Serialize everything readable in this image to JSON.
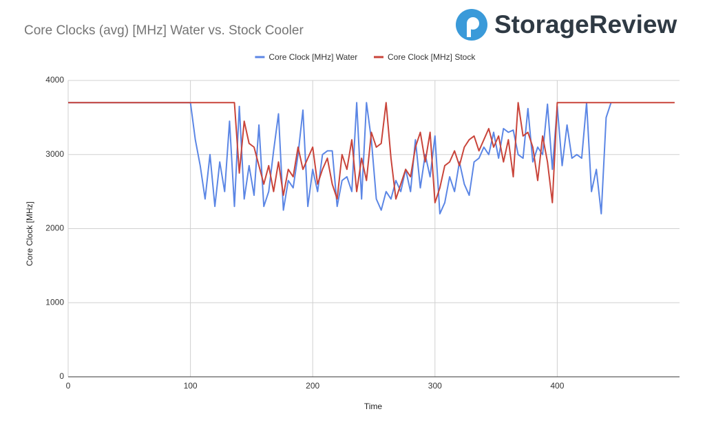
{
  "brand": "StorageReview",
  "chart_data": {
    "type": "line",
    "title": "Core Clocks (avg) [MHz] Water vs. Stock Cooler",
    "x_label": "Time",
    "y_label": "Core Clock [MHz]",
    "xlim": [
      0,
      500
    ],
    "ylim": [
      0,
      4000
    ],
    "xticks": [
      0,
      100,
      200,
      300,
      400
    ],
    "yticks": [
      0,
      1000,
      2000,
      3000,
      4000
    ],
    "grid": true,
    "legend": "top",
    "x": [
      0,
      4,
      8,
      12,
      16,
      20,
      24,
      28,
      32,
      36,
      40,
      44,
      48,
      52,
      56,
      60,
      64,
      68,
      72,
      76,
      80,
      84,
      88,
      92,
      96,
      100,
      104,
      108,
      112,
      116,
      120,
      124,
      128,
      132,
      136,
      140,
      144,
      148,
      152,
      156,
      160,
      164,
      168,
      172,
      176,
      180,
      184,
      188,
      192,
      196,
      200,
      204,
      208,
      212,
      216,
      220,
      224,
      228,
      232,
      236,
      240,
      244,
      248,
      252,
      256,
      260,
      264,
      268,
      272,
      276,
      280,
      284,
      288,
      292,
      296,
      300,
      304,
      308,
      312,
      316,
      320,
      324,
      328,
      332,
      336,
      340,
      344,
      348,
      352,
      356,
      360,
      364,
      368,
      372,
      376,
      380,
      384,
      388,
      392,
      396,
      400,
      404,
      408,
      412,
      416,
      420,
      424,
      428,
      432,
      436,
      440,
      444,
      448,
      452,
      456,
      460,
      464,
      468,
      472,
      476,
      480,
      484,
      488,
      492,
      496
    ],
    "series": [
      {
        "name": "Core Clock [MHz] Water",
        "color": "#5b86e5",
        "values": [
          3700,
          3700,
          3700,
          3700,
          3700,
          3700,
          3700,
          3700,
          3700,
          3700,
          3700,
          3700,
          3700,
          3700,
          3700,
          3700,
          3700,
          3700,
          3700,
          3700,
          3700,
          3700,
          3700,
          3700,
          3700,
          3700,
          3200,
          2850,
          2400,
          3000,
          2300,
          2900,
          2500,
          3450,
          2300,
          3650,
          2400,
          2850,
          2450,
          3400,
          2300,
          2500,
          3050,
          3550,
          2250,
          2650,
          2550,
          3000,
          3600,
          2300,
          2800,
          2500,
          3000,
          3050,
          3050,
          2300,
          2650,
          2700,
          2500,
          3700,
          2400,
          3700,
          3200,
          2400,
          2250,
          2500,
          2400,
          2650,
          2500,
          2800,
          2500,
          3200,
          2550,
          3000,
          2700,
          3250,
          2200,
          2350,
          2700,
          2500,
          2900,
          2600,
          2450,
          2900,
          2950,
          3100,
          3000,
          3300,
          2950,
          3350,
          3300,
          3330,
          3000,
          2950,
          3620,
          2900,
          3100,
          3000,
          3680,
          2800,
          3650,
          2850,
          3400,
          2950,
          3000,
          2950,
          3700,
          2500,
          2800,
          2200,
          3500,
          3700,
          null,
          null,
          null,
          null,
          null,
          null,
          null,
          null,
          null,
          null,
          null,
          null,
          null
        ]
      },
      {
        "name": "Core Clock [MHz] Stock",
        "color": "#c9443a",
        "values": [
          3700,
          3700,
          3700,
          3700,
          3700,
          3700,
          3700,
          3700,
          3700,
          3700,
          3700,
          3700,
          3700,
          3700,
          3700,
          3700,
          3700,
          3700,
          3700,
          3700,
          3700,
          3700,
          3700,
          3700,
          3700,
          3700,
          3700,
          3700,
          3700,
          3700,
          3700,
          3700,
          3700,
          3700,
          3700,
          2750,
          3450,
          3150,
          3100,
          2850,
          2600,
          2850,
          2500,
          2900,
          2450,
          2800,
          2700,
          3100,
          2800,
          2950,
          3100,
          2600,
          2800,
          2950,
          2600,
          2400,
          3000,
          2800,
          3200,
          2500,
          2950,
          2650,
          3300,
          3100,
          3150,
          3700,
          2950,
          2400,
          2600,
          2800,
          2700,
          3100,
          3300,
          2900,
          3300,
          2350,
          2550,
          2850,
          2900,
          3050,
          2850,
          3100,
          3200,
          3250,
          3050,
          3200,
          3350,
          3100,
          3250,
          2900,
          3200,
          2700,
          3700,
          3250,
          3300,
          3100,
          2650,
          3250,
          2900,
          2350,
          3700,
          3700,
          3700,
          3700,
          3700,
          3700,
          3700,
          3700,
          3700,
          3700,
          3700,
          3700,
          3700,
          3700,
          3700,
          3700,
          3700,
          3700,
          3700,
          3700,
          3700,
          3700,
          3700,
          3700,
          3700
        ]
      }
    ]
  }
}
